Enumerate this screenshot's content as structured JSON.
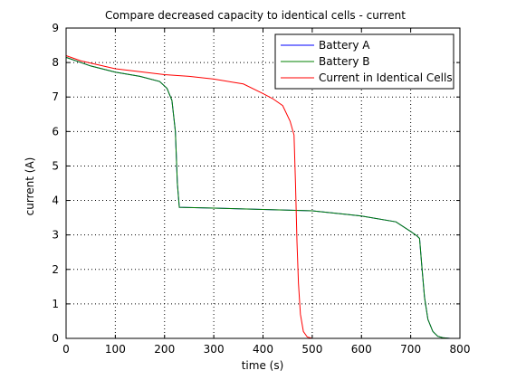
{
  "chart_data": {
    "type": "line",
    "title": "Compare decreased capacity to identical cells - current",
    "xlabel": "time (s)",
    "ylabel": "current (A)",
    "xlim": [
      0,
      800
    ],
    "ylim": [
      0,
      9
    ],
    "xticks": [
      0,
      100,
      200,
      300,
      400,
      500,
      600,
      700,
      800
    ],
    "yticks": [
      0,
      1,
      2,
      3,
      4,
      5,
      6,
      7,
      8,
      9
    ],
    "grid": true,
    "legend_position": "top-right",
    "series": [
      {
        "name": "Battery A",
        "color": "#0000ff",
        "x": [
          0,
          20,
          50,
          100,
          150,
          190,
          205,
          215,
          222,
          226,
          230,
          300,
          400,
          500,
          600,
          670,
          700,
          712,
          718,
          722,
          728,
          735,
          745,
          755,
          765,
          780,
          800
        ],
        "y": [
          8.15,
          8.05,
          7.9,
          7.72,
          7.6,
          7.45,
          7.25,
          6.9,
          6.0,
          4.5,
          3.8,
          3.78,
          3.74,
          3.7,
          3.55,
          3.38,
          3.1,
          2.98,
          2.9,
          2.2,
          1.2,
          0.55,
          0.2,
          0.06,
          0.02,
          0.0,
          0.0
        ]
      },
      {
        "name": "Battery B",
        "color": "#008000",
        "x": [
          0,
          20,
          50,
          100,
          150,
          190,
          205,
          215,
          222,
          226,
          230,
          300,
          400,
          500,
          600,
          670,
          700,
          712,
          718,
          722,
          728,
          735,
          745,
          755,
          765,
          780,
          800
        ],
        "y": [
          8.15,
          8.05,
          7.9,
          7.72,
          7.6,
          7.45,
          7.25,
          6.9,
          6.0,
          4.5,
          3.8,
          3.78,
          3.74,
          3.7,
          3.55,
          3.38,
          3.1,
          2.98,
          2.9,
          2.2,
          1.2,
          0.55,
          0.2,
          0.06,
          0.02,
          0.0,
          0.0
        ]
      },
      {
        "name": "Current in Identical Cells",
        "color": "#ff0000",
        "x": [
          0,
          30,
          100,
          200,
          250,
          300,
          360,
          400,
          420,
          440,
          455,
          463,
          466,
          469,
          472,
          476,
          482,
          490,
          500,
          520,
          600,
          800
        ],
        "y": [
          8.2,
          8.05,
          7.82,
          7.65,
          7.6,
          7.52,
          7.38,
          7.1,
          6.95,
          6.75,
          6.3,
          5.9,
          4.5,
          2.8,
          1.6,
          0.7,
          0.2,
          0.04,
          0.0,
          0.0,
          0.0,
          0.0
        ]
      }
    ]
  }
}
